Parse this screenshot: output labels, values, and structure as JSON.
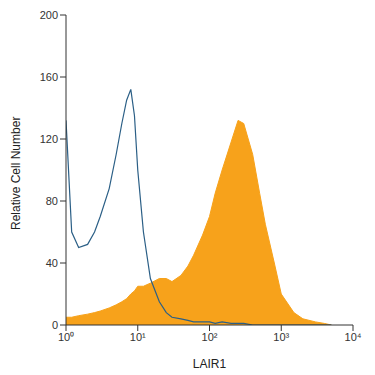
{
  "chart_data": {
    "type": "area",
    "x_label": "LAIR1",
    "y_label": "Relative Cell Number",
    "log": "x",
    "grid": false,
    "xlim": [
      1,
      10000
    ],
    "xticks": [
      {
        "value": 1,
        "label": "10⁰"
      },
      {
        "value": 10,
        "label": "10¹"
      },
      {
        "value": 100,
        "label": "10²"
      },
      {
        "value": 1000,
        "label": "10³"
      },
      {
        "value": 10000,
        "label": "10⁴"
      }
    ],
    "ylim": [
      0,
      200
    ],
    "yticks": [
      0,
      40,
      80,
      120,
      160,
      200
    ],
    "x": [
      1,
      1.2,
      1.5,
      2,
      2.5,
      3,
      4,
      5,
      6,
      7,
      8,
      9,
      10,
      12,
      15,
      20,
      25,
      30,
      40,
      50,
      60,
      80,
      100,
      120,
      150,
      200,
      250,
      300,
      400,
      500,
      600,
      800,
      1000,
      1500,
      2000,
      3000,
      4000,
      5000
    ],
    "series": [
      {
        "type": "area",
        "color": "#f7a21b",
        "values": [
          5,
          5,
          6,
          7,
          8,
          9,
          11,
          13,
          15,
          17,
          20,
          22,
          25,
          25,
          27,
          30,
          30,
          28,
          32,
          38,
          45,
          58,
          70,
          85,
          100,
          118,
          132,
          130,
          110,
          85,
          65,
          40,
          20,
          8,
          4,
          2,
          1,
          0
        ]
      },
      {
        "type": "line",
        "color": "#2b5f86",
        "values": [
          132,
          60,
          50,
          52,
          60,
          70,
          88,
          110,
          130,
          145,
          152,
          135,
          100,
          60,
          30,
          15,
          8,
          5,
          4,
          3,
          2,
          2,
          2,
          1,
          2,
          1,
          1,
          1,
          0,
          0,
          0,
          0,
          0,
          0,
          0,
          0,
          0,
          0
        ]
      }
    ]
  }
}
